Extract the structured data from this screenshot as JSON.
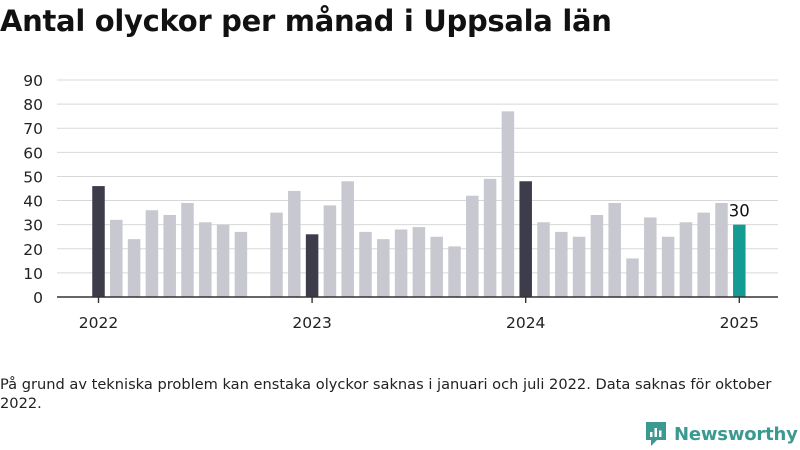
{
  "title": "Antal olyckor per månad i Uppsala län",
  "footnote": "På grund av tekniska problem kan enstaka olyckor saknas i januari och juli 2022. Data saknas för oktober 2022.",
  "brand": {
    "name": "Newsworthy",
    "icon": "newsworthy-logo-icon"
  },
  "colors": {
    "bar": "#c8c8d0",
    "january_bar": "#3c3c4b",
    "latest_bar": "#139b94",
    "grid": "#d8d8d8",
    "axis": "#333333",
    "text": "#111111"
  },
  "chart_data": {
    "type": "bar",
    "title": "Antal olyckor per månad i Uppsala län",
    "xlabel": "",
    "ylabel": "",
    "ylim": [
      0,
      90
    ],
    "yticks": [
      0,
      10,
      20,
      30,
      40,
      50,
      60,
      70,
      80,
      90
    ],
    "grid": true,
    "x_tick_labels": [
      {
        "label": "2022",
        "category": "2022-01"
      },
      {
        "label": "2023",
        "category": "2023-01"
      },
      {
        "label": "2024",
        "category": "2024-01"
      },
      {
        "label": "2025",
        "category": "2025-01"
      }
    ],
    "categories": [
      "2022-01",
      "2022-02",
      "2022-03",
      "2022-04",
      "2022-05",
      "2022-06",
      "2022-07",
      "2022-08",
      "2022-09",
      "2022-10",
      "2022-11",
      "2022-12",
      "2023-01",
      "2023-02",
      "2023-03",
      "2023-04",
      "2023-05",
      "2023-06",
      "2023-07",
      "2023-08",
      "2023-09",
      "2023-10",
      "2023-11",
      "2023-12",
      "2024-01",
      "2024-02",
      "2024-03",
      "2024-04",
      "2024-05",
      "2024-06",
      "2024-07",
      "2024-08",
      "2024-09",
      "2024-10",
      "2024-11",
      "2024-12",
      "2025-01"
    ],
    "values": [
      46,
      32,
      24,
      36,
      34,
      39,
      31,
      30,
      27,
      null,
      35,
      44,
      26,
      38,
      48,
      27,
      24,
      28,
      29,
      25,
      21,
      42,
      49,
      77,
      48,
      31,
      27,
      25,
      34,
      39,
      16,
      33,
      25,
      31,
      35,
      39,
      30
    ],
    "highlight_last_label": "30"
  }
}
